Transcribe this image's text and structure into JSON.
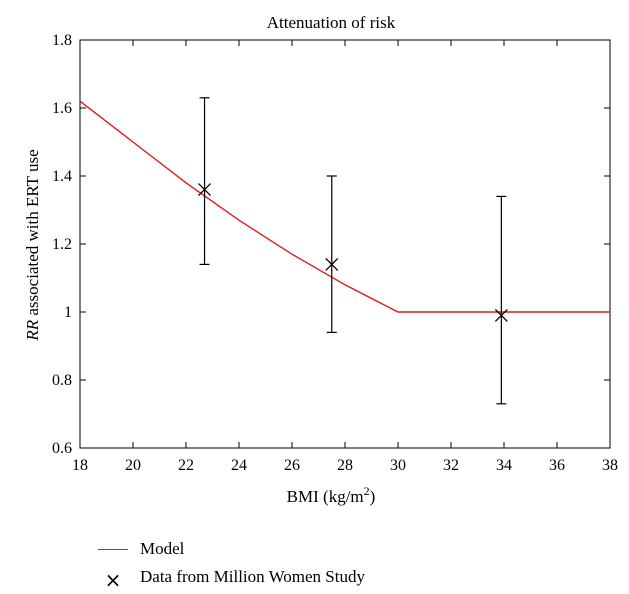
{
  "chart_data": {
    "type": "line",
    "title": "Attenuation of risk",
    "xlabel": "BMI",
    "xlabel_unit_prefix": " (kg/m",
    "xlabel_unit_sup": "2",
    "xlabel_unit_suffix": ")",
    "ylabel_italic": "RR",
    "ylabel_rest": " associated with ERT use",
    "xlim": [
      18,
      38
    ],
    "ylim": [
      0.6,
      1.8
    ],
    "xticks": [
      18,
      20,
      22,
      24,
      26,
      28,
      30,
      32,
      34,
      36,
      38
    ],
    "yticks": [
      0.6,
      0.8,
      1,
      1.2,
      1.4,
      1.6,
      1.8
    ],
    "ytick_labels": [
      "0.6",
      "0.8",
      "1",
      "1.2",
      "1.4",
      "1.6",
      "1.8"
    ],
    "series": [
      {
        "name": "Model",
        "kind": "line",
        "color": "#e0191c",
        "x": [
          18,
          20,
          22,
          24,
          26,
          28,
          30,
          38
        ],
        "y": [
          1.62,
          1.5,
          1.38,
          1.27,
          1.17,
          1.08,
          1.0,
          1.0
        ]
      },
      {
        "name": "Data from Million Women Study",
        "kind": "scatter-errorbar",
        "color": "#000000",
        "marker": "x-mark-icon",
        "points": [
          {
            "x": 22.7,
            "y": 1.36,
            "low": 1.14,
            "high": 1.63
          },
          {
            "x": 27.5,
            "y": 1.14,
            "low": 0.94,
            "high": 1.4
          },
          {
            "x": 33.9,
            "y": 0.99,
            "low": 0.73,
            "high": 1.34
          }
        ]
      }
    ],
    "grid": false,
    "legend_position": "bottom-left"
  },
  "legend": {
    "items": [
      {
        "label": "Model",
        "icon": "red-line-icon"
      },
      {
        "label": "Data from Million Women Study",
        "icon": "x-mark-icon"
      }
    ]
  }
}
